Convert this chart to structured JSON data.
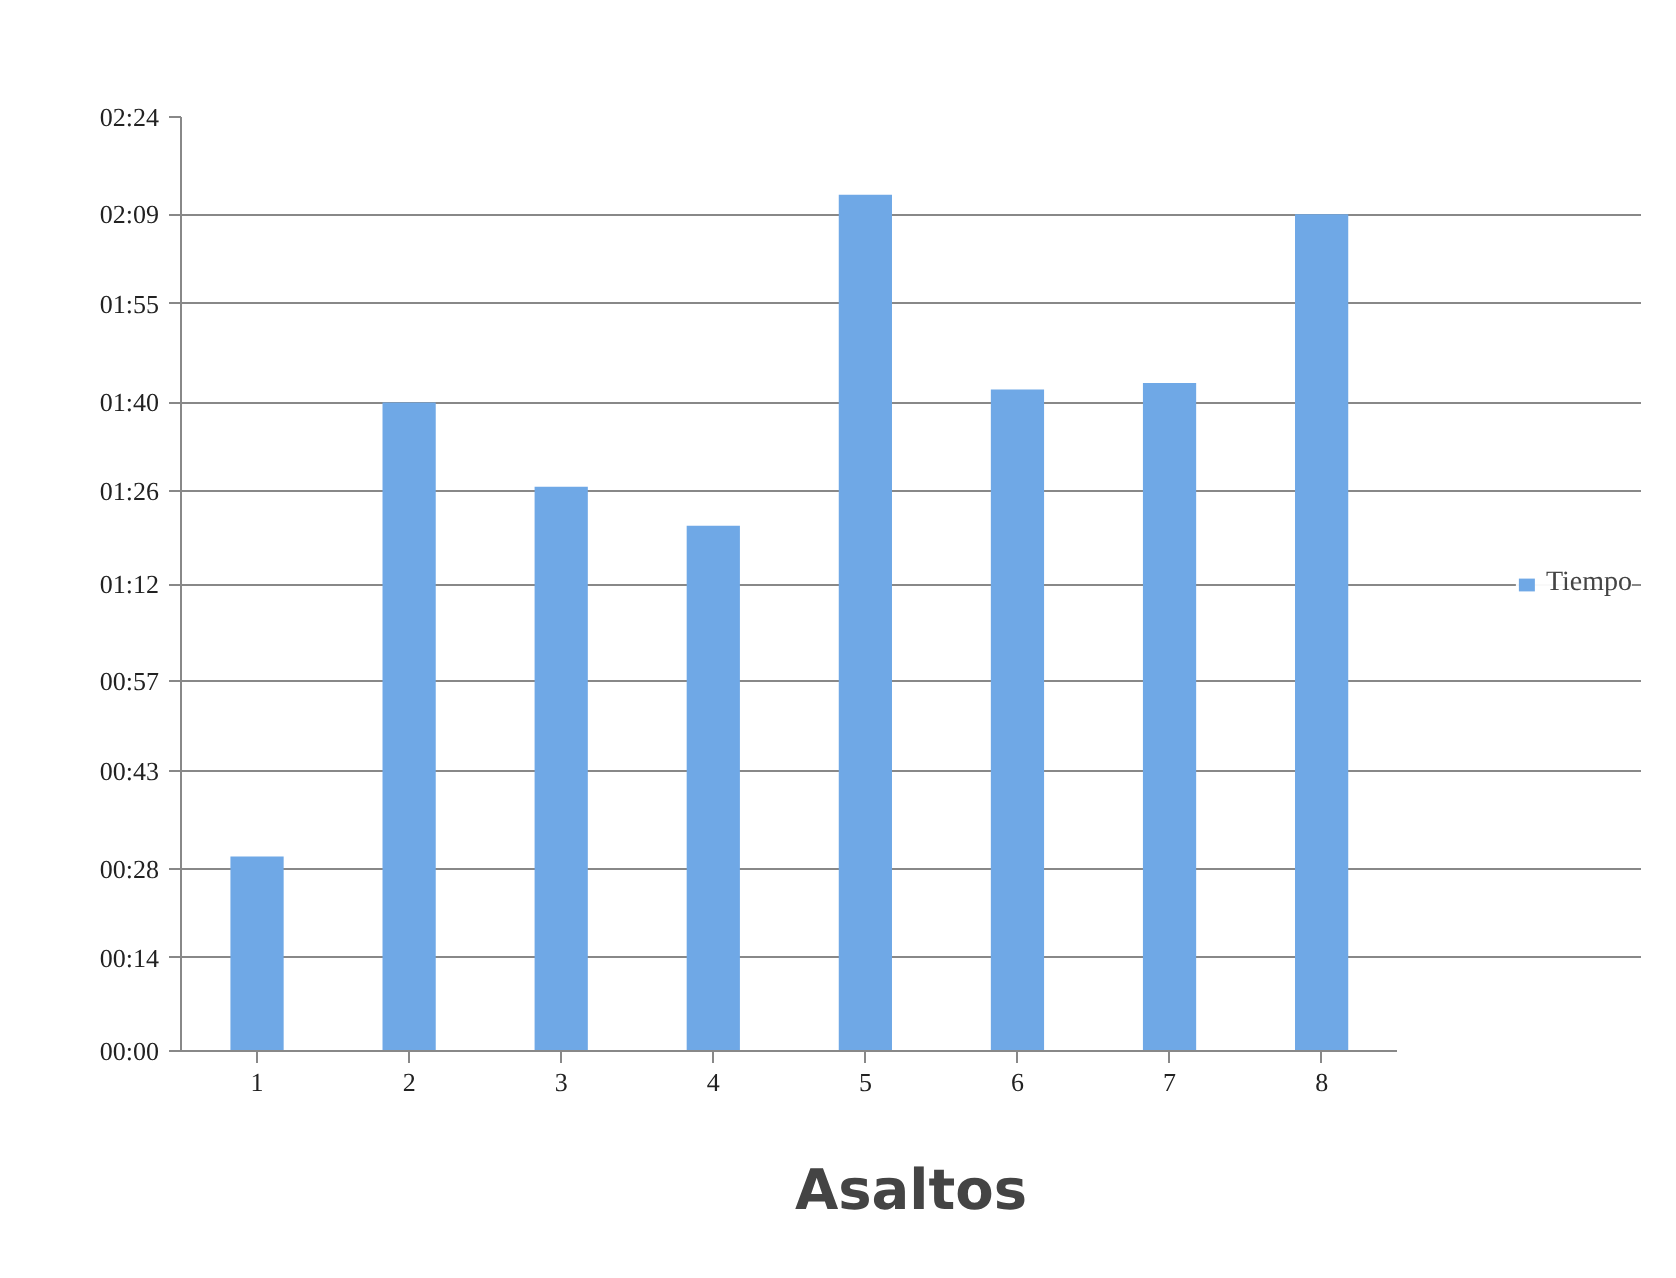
{
  "chart_data": {
    "type": "bar",
    "xlabel": "Asaltos",
    "categories": [
      "1",
      "2",
      "3",
      "4",
      "5",
      "6",
      "7",
      "8"
    ],
    "series": [
      {
        "name": "Tiempo",
        "color": "#6fa8e6",
        "values": [
          30,
          100,
          87,
          81,
          132,
          102,
          103,
          129
        ]
      }
    ],
    "ylim": [
      0,
      144
    ],
    "yticks": [
      {
        "value": 0,
        "label": "00:00"
      },
      {
        "value": 14.4,
        "label": "00:14"
      },
      {
        "value": 28,
        "label": "00:28"
      },
      {
        "value": 43.2,
        "label": "00:43"
      },
      {
        "value": 57,
        "label": "00:57"
      },
      {
        "value": 72,
        "label": "01:12"
      },
      {
        "value": 86.4,
        "label": "01:26"
      },
      {
        "value": 100,
        "label": "01:40"
      },
      {
        "value": 115.2,
        "label": "01:55"
      },
      {
        "value": 129,
        "label": "02:09"
      },
      {
        "value": 144,
        "label": "02:24"
      }
    ],
    "grid": "y",
    "legend": "right"
  }
}
